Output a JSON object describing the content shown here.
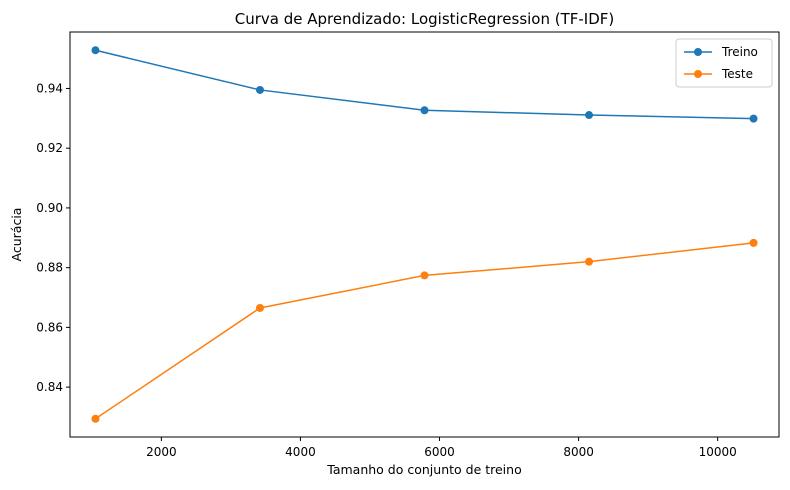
{
  "chart_data": {
    "type": "line",
    "title": "Curva de Aprendizado: LogisticRegression (TF-IDF)",
    "xlabel": "Tamanho do conjunto de treino",
    "ylabel": "Acurácia",
    "x": [
      1052,
      3418,
      5784,
      8150,
      10516
    ],
    "xlim": [
      686,
      10882
    ],
    "ylim": [
      0.8233,
      0.9589
    ],
    "xticks": [
      2000,
      4000,
      6000,
      8000,
      10000
    ],
    "xtick_labels": [
      "2000",
      "4000",
      "6000",
      "8000",
      "10000"
    ],
    "yticks": [
      0.84,
      0.86,
      0.88,
      0.9,
      0.92,
      0.94
    ],
    "ytick_labels": [
      "0.84",
      "0.86",
      "0.88",
      "0.90",
      "0.92",
      "0.94"
    ],
    "grid": false,
    "legend_position": "top-right",
    "series": [
      {
        "name": "Treino",
        "color": "#1f77b4",
        "values": [
          0.9528,
          0.9395,
          0.9327,
          0.9311,
          0.9299
        ]
      },
      {
        "name": "Teste",
        "color": "#ff7f0e",
        "values": [
          0.8294,
          0.8665,
          0.8774,
          0.882,
          0.8883
        ]
      }
    ]
  }
}
